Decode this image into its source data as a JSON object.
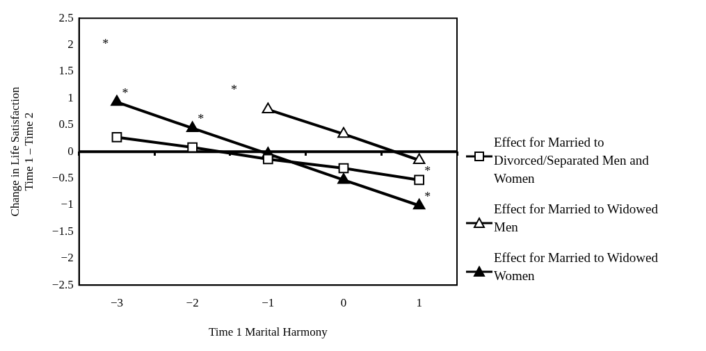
{
  "chart_data": {
    "type": "line",
    "xlabel": "Time 1 Marital Harmony",
    "ylabel": "Change in Life Satisfaction\nTime 1 – Time 2",
    "categories": [
      "−3",
      "−2",
      "−1",
      "0",
      "1"
    ],
    "series": [
      {
        "name": "Effect for Married to Divorced/Separated Men and Women",
        "color": "#000000",
        "marker": "square",
        "colors": [
          "#ffffff",
          "#ffffff",
          "#ffffff",
          "#ffffff",
          "#ffffff"
        ],
        "values": [
          0.27,
          0.08,
          -0.14,
          -0.31,
          -0.53
        ]
      },
      {
        "name": "Effect for Married to Widowed Men",
        "color": "#000000",
        "marker": "triangle",
        "colors": [
          "#ffffff",
          "#ffffff",
          "#ffffff",
          "#ffffff",
          "#ffffff"
        ],
        "values": [
          null,
          null,
          0.79,
          0.33,
          -0.16
        ]
      },
      {
        "name": "Effect for Married to Widowed Women",
        "color": "#000000",
        "marker": "triangle",
        "values": [
          0.93,
          0.44,
          -0.04,
          -0.53,
          -1.01
        ]
      }
    ],
    "ylim": [
      -2.5,
      2.5
    ],
    "yticks": [
      {
        "value": -2.5,
        "label": "−2.5"
      },
      {
        "value": -2,
        "label": "−2"
      },
      {
        "value": -1.5,
        "label": "−1.5"
      },
      {
        "value": -1,
        "label": "−1"
      },
      {
        "value": -0.5,
        "label": "−0.5"
      },
      0,
      0.5,
      1,
      1.5,
      2,
      2.5
    ],
    "ref_lines": [
      {
        "axis": "y",
        "value": 0
      }
    ],
    "annotations": [
      {
        "text": "*",
        "x": "−3",
        "y": 0.93
      },
      {
        "text": "*",
        "x": "−2",
        "y": 0.44
      },
      {
        "text": "*",
        "x": "1",
        "y": -0.53
      },
      {
        "text": "*",
        "x": "1",
        "y": -1.01
      },
      "*",
      "*"
    ],
    "grid": false,
    "legend": "right",
    "line_style": "solid"
  }
}
